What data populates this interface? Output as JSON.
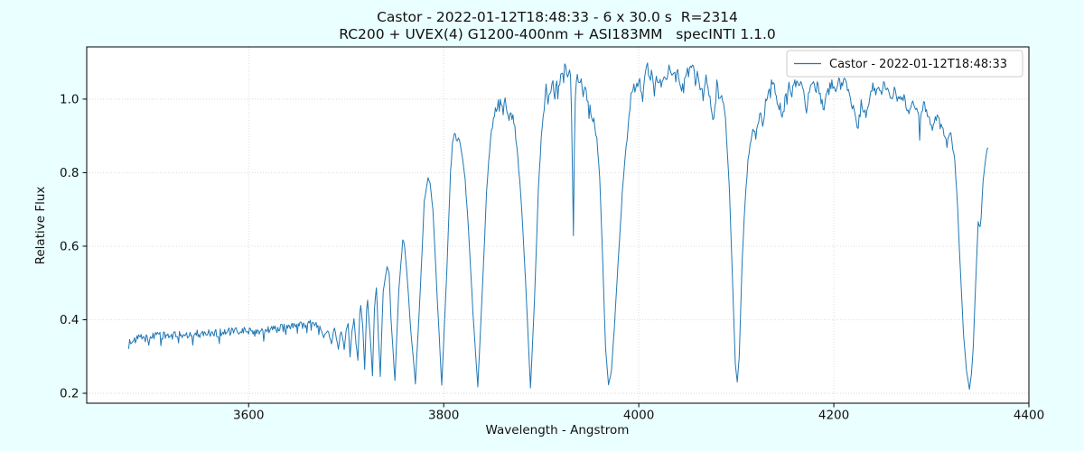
{
  "figure": {
    "background_color": "#eaffff",
    "axes_background_color": "#ffffff",
    "grid_color": "#d9d9d9",
    "spine_color": "#000000"
  },
  "chart_data": {
    "type": "line",
    "title": "Castor - 2022-01-12T18:48:33 - 6 x 30.0 s  R=2314",
    "subtitle": "RC200 + UVEX(4) G1200-400nm + ASI183MM   specINTI 1.1.0",
    "xlabel": "Wavelength - Angstrom",
    "ylabel": "Relative Flux",
    "legend_label": "Castor - 2022-01-12T18:48:33",
    "legend_position": "upper right",
    "line_color": "#1f77b4",
    "grid": true,
    "grid_style": "dotted",
    "xlim": [
      3434,
      4400
    ],
    "ylim": [
      0.173,
      1.142
    ],
    "xticks": [
      3600,
      3800,
      4000,
      4200,
      4400
    ],
    "yticks": [
      0.2,
      0.4,
      0.6,
      0.8,
      1.0
    ],
    "x_units": "Angstrom",
    "noise": {
      "seed": 1234,
      "step": 0.9,
      "plateau_end": 3673,
      "plateau_amp": 0.011
    },
    "series": [
      {
        "name": "Castor - 2022-01-12T18:48:33",
        "points": [
          [
            3477,
            0.33
          ],
          [
            3479,
            0.345
          ],
          [
            3483,
            0.34
          ],
          [
            3488,
            0.352
          ],
          [
            3495,
            0.35
          ],
          [
            3502,
            0.356
          ],
          [
            3510,
            0.355
          ],
          [
            3520,
            0.357
          ],
          [
            3530,
            0.359
          ],
          [
            3540,
            0.36
          ],
          [
            3550,
            0.362
          ],
          [
            3560,
            0.364
          ],
          [
            3570,
            0.365
          ],
          [
            3580,
            0.367
          ],
          [
            3590,
            0.368
          ],
          [
            3600,
            0.37
          ],
          [
            3610,
            0.371
          ],
          [
            3620,
            0.373
          ],
          [
            3630,
            0.376
          ],
          [
            3640,
            0.38
          ],
          [
            3650,
            0.384
          ],
          [
            3658,
            0.387
          ],
          [
            3665,
            0.39
          ],
          [
            3670,
            0.387
          ],
          [
            3673,
            0.38
          ],
          [
            3675,
            0.37
          ],
          [
            3677,
            0.352
          ],
          [
            3679,
            0.365
          ],
          [
            3681,
            0.372
          ],
          [
            3683,
            0.355
          ],
          [
            3685,
            0.336
          ],
          [
            3687,
            0.368
          ],
          [
            3688,
            0.375
          ],
          [
            3690,
            0.35
          ],
          [
            3692,
            0.322
          ],
          [
            3694,
            0.36
          ],
          [
            3695,
            0.368
          ],
          [
            3697,
            0.34
          ],
          [
            3698,
            0.318
          ],
          [
            3700,
            0.37
          ],
          [
            3702,
            0.392
          ],
          [
            3704,
            0.298
          ],
          [
            3706,
            0.37
          ],
          [
            3708,
            0.4
          ],
          [
            3710,
            0.34
          ],
          [
            3712,
            0.292
          ],
          [
            3714,
            0.42
          ],
          [
            3715,
            0.438
          ],
          [
            3717,
            0.38
          ],
          [
            3719,
            0.268
          ],
          [
            3721,
            0.43
          ],
          [
            3722,
            0.452
          ],
          [
            3725,
            0.34
          ],
          [
            3727,
            0.25
          ],
          [
            3729,
            0.43
          ],
          [
            3731,
            0.49
          ],
          [
            3733,
            0.36
          ],
          [
            3735,
            0.248
          ],
          [
            3738,
            0.48
          ],
          [
            3742,
            0.543
          ],
          [
            3744,
            0.53
          ],
          [
            3746,
            0.4
          ],
          [
            3750,
            0.235
          ],
          [
            3754,
            0.48
          ],
          [
            3758,
            0.615
          ],
          [
            3760,
            0.6
          ],
          [
            3763,
            0.5
          ],
          [
            3766,
            0.38
          ],
          [
            3771,
            0.228
          ],
          [
            3776,
            0.48
          ],
          [
            3780,
            0.72
          ],
          [
            3784,
            0.79
          ],
          [
            3786,
            0.775
          ],
          [
            3789,
            0.7
          ],
          [
            3793,
            0.48
          ],
          [
            3798,
            0.222
          ],
          [
            3803,
            0.52
          ],
          [
            3807,
            0.8
          ],
          [
            3809,
            0.885
          ],
          [
            3812,
            0.912
          ],
          [
            3814,
            0.88
          ],
          [
            3816,
            0.893
          ],
          [
            3819,
            0.85
          ],
          [
            3822,
            0.78
          ],
          [
            3826,
            0.62
          ],
          [
            3830,
            0.42
          ],
          [
            3835,
            0.218
          ],
          [
            3840,
            0.5
          ],
          [
            3844,
            0.75
          ],
          [
            3848,
            0.9
          ],
          [
            3852,
            0.965
          ],
          [
            3855,
            0.985
          ],
          [
            3858,
            1.0
          ],
          [
            3860,
            0.982
          ],
          [
            3862,
            0.99
          ],
          [
            3864,
            0.988
          ],
          [
            3866,
            0.945
          ],
          [
            3868,
            0.952
          ],
          [
            3870,
            0.957
          ],
          [
            3873,
            0.92
          ],
          [
            3876,
            0.85
          ],
          [
            3880,
            0.7
          ],
          [
            3884,
            0.5
          ],
          [
            3889,
            0.215
          ],
          [
            3893,
            0.45
          ],
          [
            3897,
            0.75
          ],
          [
            3900,
            0.9
          ],
          [
            3902,
            0.96
          ],
          [
            3905,
            1.027
          ],
          [
            3907,
            1.0
          ],
          [
            3909,
            1.03
          ],
          [
            3911,
            1.042
          ],
          [
            3913,
            1.03
          ],
          [
            3915,
            1.048
          ],
          [
            3917,
            1.035
          ],
          [
            3919,
            1.052
          ],
          [
            3921,
            1.065
          ],
          [
            3924,
            1.093
          ],
          [
            3926,
            1.068
          ],
          [
            3928,
            1.08
          ],
          [
            3930,
            1.06
          ],
          [
            3931,
            0.98
          ],
          [
            3933,
            0.632
          ],
          [
            3934,
            0.87
          ],
          [
            3935,
            1.01
          ],
          [
            3936,
            1.057
          ],
          [
            3938,
            1.048
          ],
          [
            3940,
            1.06
          ],
          [
            3942,
            1.03
          ],
          [
            3943,
            1.007
          ],
          [
            3945,
            1.028
          ],
          [
            3947,
            1.0
          ],
          [
            3949,
            0.99
          ],
          [
            3951,
            0.96
          ],
          [
            3953,
            0.945
          ],
          [
            3955,
            0.93
          ],
          [
            3957,
            0.89
          ],
          [
            3960,
            0.78
          ],
          [
            3963,
            0.56
          ],
          [
            3966,
            0.32
          ],
          [
            3969,
            0.222
          ],
          [
            3972,
            0.26
          ],
          [
            3975,
            0.38
          ],
          [
            3979,
            0.56
          ],
          [
            3983,
            0.74
          ],
          [
            3987,
            0.87
          ],
          [
            3990,
            0.95
          ],
          [
            3993,
            1.03
          ],
          [
            3995,
            1.045
          ],
          [
            3997,
            1.02
          ],
          [
            4000,
            1.058
          ],
          [
            4002,
            1.035
          ],
          [
            4004,
            1.0
          ],
          [
            4007,
            1.068
          ],
          [
            4009,
            1.09
          ],
          [
            4011,
            1.05
          ],
          [
            4013,
            1.07
          ],
          [
            4016,
            1.03
          ],
          [
            4018,
            1.06
          ],
          [
            4021,
            1.045
          ],
          [
            4024,
            1.04
          ],
          [
            4026,
            1.075
          ],
          [
            4029,
            1.05
          ],
          [
            4031,
            1.08
          ],
          [
            4034,
            1.06
          ],
          [
            4037,
            1.075
          ],
          [
            4040,
            1.088
          ],
          [
            4042,
            1.04
          ],
          [
            4044,
            1.01
          ],
          [
            4046,
            1.06
          ],
          [
            4049,
            1.078
          ],
          [
            4052,
            1.068
          ],
          [
            4055,
            1.09
          ],
          [
            4058,
            1.05
          ],
          [
            4061,
            1.07
          ],
          [
            4063,
            1.04
          ],
          [
            4066,
            1.0
          ],
          [
            4069,
            1.058
          ],
          [
            4071,
            1.02
          ],
          [
            4074,
            0.99
          ],
          [
            4077,
            0.94
          ],
          [
            4080,
            1.04
          ],
          [
            4082,
            1.01
          ],
          [
            4085,
            1.0
          ],
          [
            4088,
            0.965
          ],
          [
            4090,
            0.9
          ],
          [
            4093,
            0.75
          ],
          [
            4096,
            0.52
          ],
          [
            4099,
            0.28
          ],
          [
            4101,
            0.228
          ],
          [
            4103,
            0.3
          ],
          [
            4106,
            0.56
          ],
          [
            4109,
            0.72
          ],
          [
            4112,
            0.83
          ],
          [
            4114,
            0.875
          ],
          [
            4116,
            0.905
          ],
          [
            4118,
            0.92
          ],
          [
            4120,
            0.9
          ],
          [
            4123,
            0.952
          ],
          [
            4125,
            0.977
          ],
          [
            4127,
            0.935
          ],
          [
            4130,
            0.988
          ],
          [
            4133,
            1.018
          ],
          [
            4136,
            1.048
          ],
          [
            4139,
            1.03
          ],
          [
            4142,
            0.995
          ],
          [
            4145,
            0.975
          ],
          [
            4148,
            0.958
          ],
          [
            4151,
            1.02
          ],
          [
            4154,
            1.04
          ],
          [
            4157,
            1.012
          ],
          [
            4160,
            1.045
          ],
          [
            4163,
            1.03
          ],
          [
            4166,
            1.05
          ],
          [
            4169,
            1.02
          ],
          [
            4172,
            0.952
          ],
          [
            4175,
            1.03
          ],
          [
            4178,
            1.045
          ],
          [
            4181,
            1.02
          ],
          [
            4184,
            1.04
          ],
          [
            4187,
            1.0
          ],
          [
            4190,
            0.978
          ],
          [
            4193,
            1.01
          ],
          [
            4196,
            1.035
          ],
          [
            4199,
            1.04
          ],
          [
            4202,
            1.012
          ],
          [
            4205,
            1.045
          ],
          [
            4208,
            1.03
          ],
          [
            4211,
            1.048
          ],
          [
            4214,
            1.02
          ],
          [
            4217,
            1.0
          ],
          [
            4220,
            0.97
          ],
          [
            4223,
            0.94
          ],
          [
            4225,
            0.925
          ],
          [
            4228,
            0.985
          ],
          [
            4231,
            0.97
          ],
          [
            4234,
            0.958
          ],
          [
            4237,
            1.01
          ],
          [
            4240,
            1.035
          ],
          [
            4243,
            1.02
          ],
          [
            4246,
            1.038
          ],
          [
            4249,
            1.025
          ],
          [
            4252,
            1.04
          ],
          [
            4255,
            1.018
          ],
          [
            4258,
            1.0
          ],
          [
            4261,
            1.022
          ],
          [
            4264,
            1.01
          ],
          [
            4267,
            0.99
          ],
          [
            4270,
            1.008
          ],
          [
            4273,
            0.995
          ],
          [
            4277,
            0.97
          ],
          [
            4280,
            1.0
          ],
          [
            4283,
            0.985
          ],
          [
            4286,
            0.968
          ],
          [
            4289,
            0.94
          ],
          [
            4292,
            0.985
          ],
          [
            4295,
            0.965
          ],
          [
            4298,
            0.945
          ],
          [
            4301,
            0.92
          ],
          [
            4304,
            0.96
          ],
          [
            4307,
            0.942
          ],
          [
            4310,
            0.928
          ],
          [
            4313,
            0.905
          ],
          [
            4316,
            0.875
          ],
          [
            4318,
            0.905
          ],
          [
            4320,
            0.908
          ],
          [
            4322,
            0.87
          ],
          [
            4324,
            0.835
          ],
          [
            4327,
            0.7
          ],
          [
            4330,
            0.52
          ],
          [
            4333,
            0.36
          ],
          [
            4336,
            0.26
          ],
          [
            4339,
            0.213
          ],
          [
            4341,
            0.25
          ],
          [
            4343,
            0.33
          ],
          [
            4345,
            0.47
          ],
          [
            4347,
            0.6
          ],
          [
            4348,
            0.665
          ],
          [
            4350,
            0.65
          ],
          [
            4351,
            0.68
          ],
          [
            4353,
            0.78
          ],
          [
            4355,
            0.83
          ],
          [
            4356,
            0.845
          ],
          [
            4358,
            0.868
          ]
        ]
      }
    ]
  }
}
